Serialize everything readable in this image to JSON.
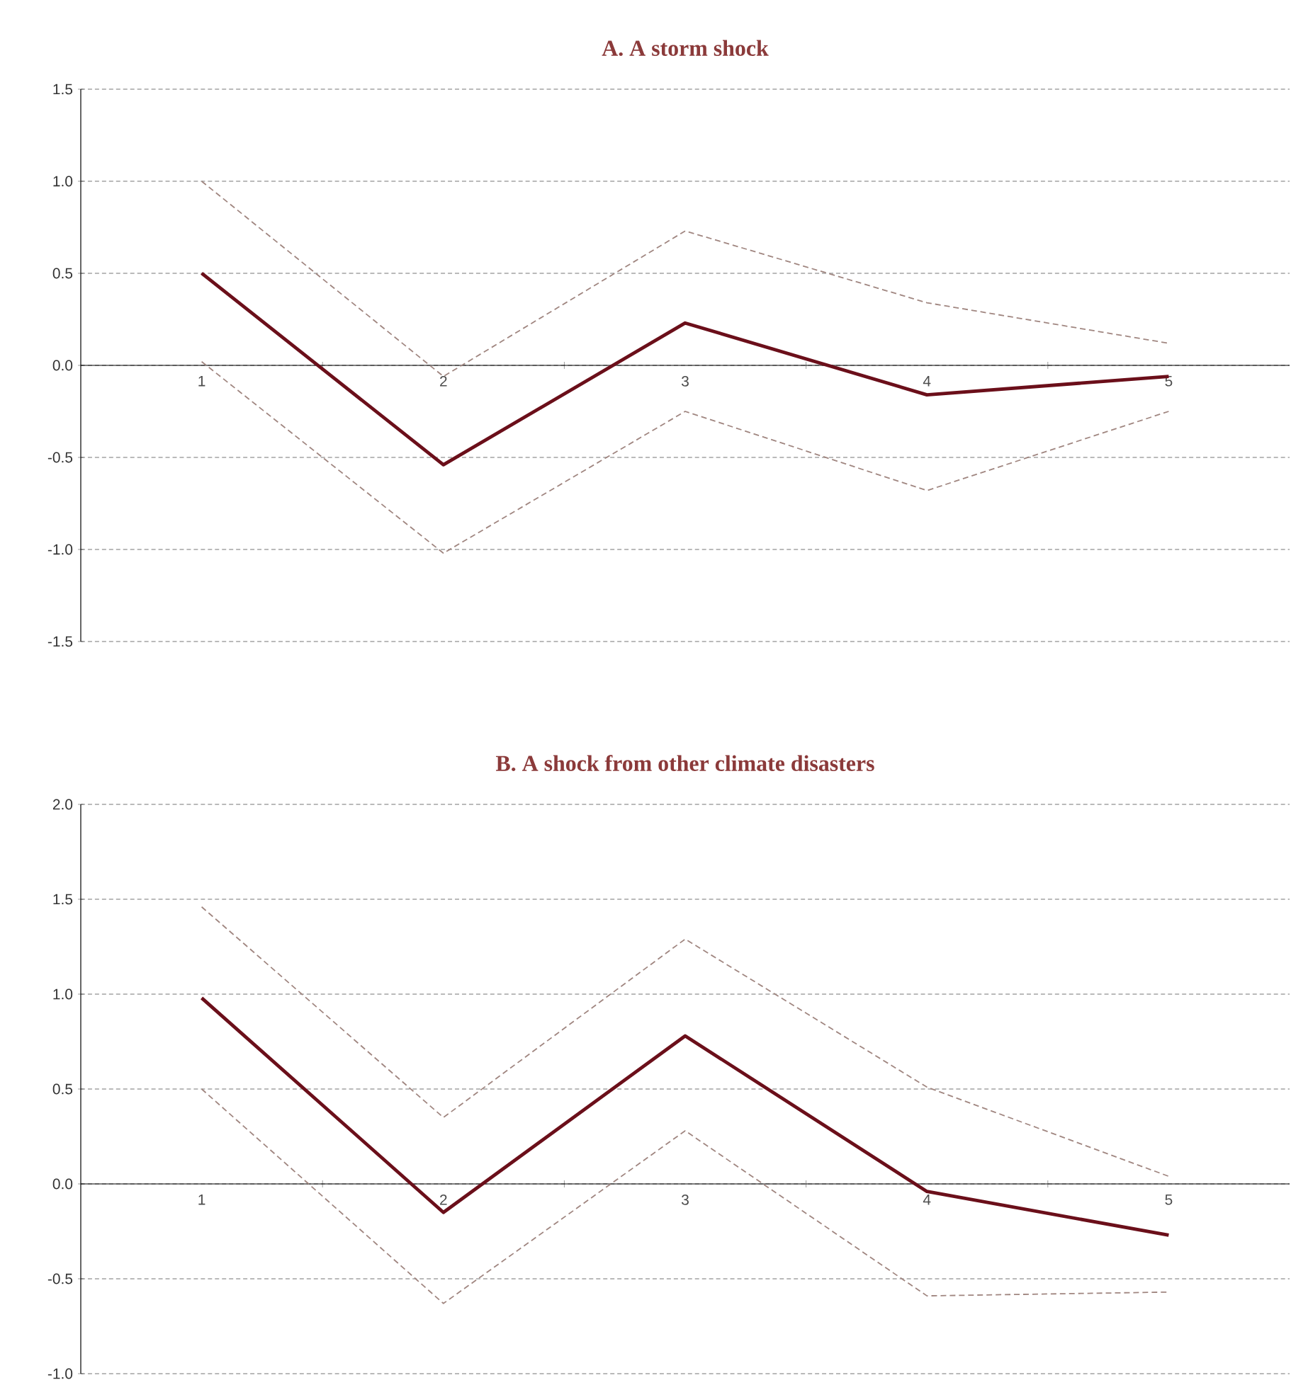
{
  "chart_data": [
    {
      "type": "line",
      "title": "A. A storm shock",
      "categories": [
        "1",
        "2",
        "3",
        "4",
        "5"
      ],
      "ylim": [
        -1.5,
        1.5
      ],
      "yticks": [
        {
          "value": -1.5,
          "label": "-1.5"
        },
        {
          "value": -1,
          "label": "-1.0"
        },
        {
          "value": -0.5,
          "label": "-0.5"
        },
        {
          "value": 0,
          "label": "0.0"
        },
        {
          "value": 0.5,
          "label": "0.5"
        },
        {
          "value": 1,
          "label": "1.0"
        },
        {
          "value": 1.5,
          "label": "1.5"
        }
      ],
      "grid": "y",
      "marker": "none",
      "series": [
        {
          "color": "#a08680",
          "line_style": "dashed",
          "values": [
            1.0,
            -0.06,
            0.73,
            0.34,
            0.12
          ]
        },
        {
          "color": "#a08680",
          "line_style": "dashed",
          "values": [
            0.02,
            -1.02,
            -0.25,
            -0.68,
            -0.25
          ]
        },
        {
          "color": "#6b0f1a",
          "line_style": "solid",
          "values": [
            0.5,
            -0.54,
            0.23,
            -0.16,
            -0.06
          ]
        }
      ]
    },
    {
      "type": "line",
      "title": "B. A shock from other climate disasters",
      "categories": [
        "1",
        "2",
        "3",
        "4",
        "5"
      ],
      "ylim": [
        -1,
        2
      ],
      "yticks": [
        {
          "value": -1,
          "label": "-1.0"
        },
        {
          "value": -0.5,
          "label": "-0.5"
        },
        {
          "value": 0,
          "label": "0.0"
        },
        {
          "value": 0.5,
          "label": "0.5"
        },
        {
          "value": 1,
          "label": "1.0"
        },
        {
          "value": 1.5,
          "label": "1.5"
        },
        {
          "value": 2,
          "label": "2.0"
        }
      ],
      "grid": "y",
      "marker": "none",
      "series": [
        {
          "color": "#a08680",
          "line_style": "dashed",
          "values": [
            1.46,
            0.35,
            1.29,
            0.51,
            0.04
          ]
        },
        {
          "color": "#a08680",
          "line_style": "dashed",
          "values": [
            0.5,
            -0.63,
            0.28,
            -0.59,
            -0.57
          ]
        },
        {
          "color": "#6b0f1a",
          "line_style": "solid",
          "values": [
            0.98,
            -0.15,
            0.78,
            -0.04,
            -0.27
          ]
        }
      ]
    }
  ]
}
